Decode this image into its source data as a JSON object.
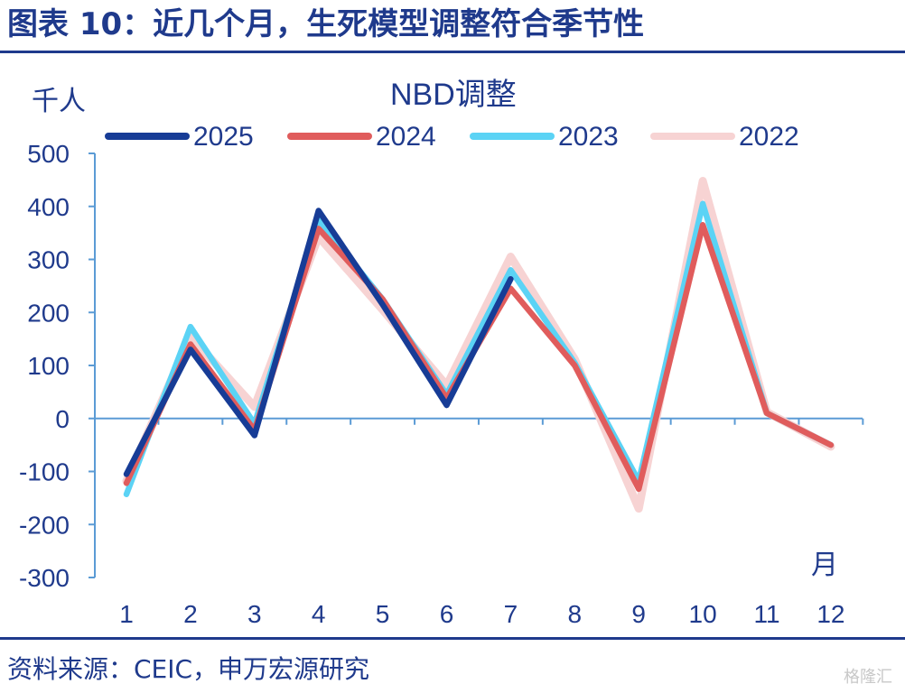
{
  "figure": {
    "title": "图表 10：近几个月，生死模型调整符合季节性",
    "source": "资料来源：CEIC，申万宏源研究",
    "watermark": "格隆汇"
  },
  "chart_data": {
    "type": "line",
    "title": "NBD调整",
    "ylabel": "千人",
    "xlabel": "月",
    "ylim": [
      -300,
      500
    ],
    "yticks": [
      500,
      400,
      300,
      200,
      100,
      0,
      -100,
      -200,
      -300
    ],
    "categories": [
      "1",
      "2",
      "3",
      "4",
      "5",
      "6",
      "7",
      "8",
      "9",
      "10",
      "11",
      "12"
    ],
    "legend_position": "top",
    "grid": false,
    "series": [
      {
        "name": "2022",
        "color": "#f7d3d3",
        "values": [
          -118,
          155,
          22,
          343,
          205,
          62,
          305,
          112,
          -170,
          448,
          12,
          -53
        ]
      },
      {
        "name": "2023",
        "color": "#5bd3f5",
        "values": [
          -143,
          173,
          -10,
          375,
          225,
          45,
          280,
          105,
          -118,
          405,
          10,
          -50
        ]
      },
      {
        "name": "2024",
        "color": "#e05c5c",
        "values": [
          -122,
          140,
          -22,
          358,
          225,
          38,
          245,
          100,
          -133,
          365,
          10,
          -50
        ]
      },
      {
        "name": "2025",
        "color": "#173c96",
        "values": [
          -105,
          130,
          -32,
          392,
          215,
          25,
          263,
          null,
          null,
          null,
          null,
          null
        ]
      }
    ],
    "legend_order": [
      "2025",
      "2024",
      "2023",
      "2022"
    ]
  }
}
